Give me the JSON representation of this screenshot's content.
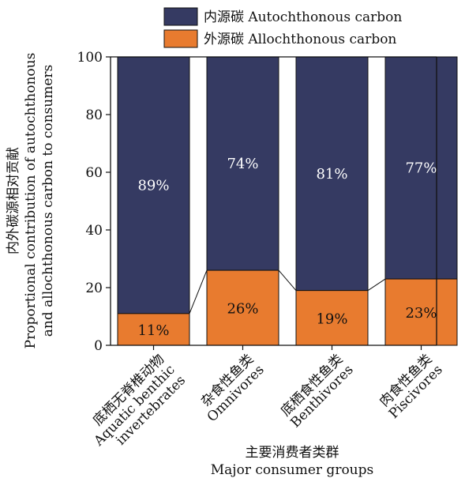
{
  "chart_data": {
    "type": "bar",
    "stacked": true,
    "categories": [
      [
        "底栖无脊椎动物",
        "Aquatic benthic",
        "invertebrates"
      ],
      [
        "杂食性鱼类",
        "Omnivores"
      ],
      [
        "底栖食性鱼类",
        "Benthivores"
      ],
      [
        "肉食性鱼类",
        "Piscivores"
      ]
    ],
    "series": [
      {
        "name": "外源碳 Allochthonous carbon",
        "values": [
          11,
          26,
          19,
          23
        ],
        "labels": [
          "11%",
          "26%",
          "19%",
          "23%"
        ],
        "color": "#e87b2f"
      },
      {
        "name": "内源碳 Autochthonous carbon",
        "values": [
          89,
          74,
          81,
          77
        ],
        "labels": [
          "89%",
          "74%",
          "81%",
          "77%"
        ],
        "color": "#353a62"
      }
    ],
    "ylabel": [
      "内外碳源相对贡献",
      "Proportional contribution of autochthonous",
      "and allochthonous carbon to consumers"
    ],
    "xlabel": [
      "主要消费者类群",
      "Major consumer groups"
    ],
    "ylim": [
      0,
      100
    ],
    "yticks": [
      0,
      20,
      40,
      60,
      80,
      100
    ],
    "grid": false,
    "legend_position": "top",
    "connector_lines": true
  }
}
